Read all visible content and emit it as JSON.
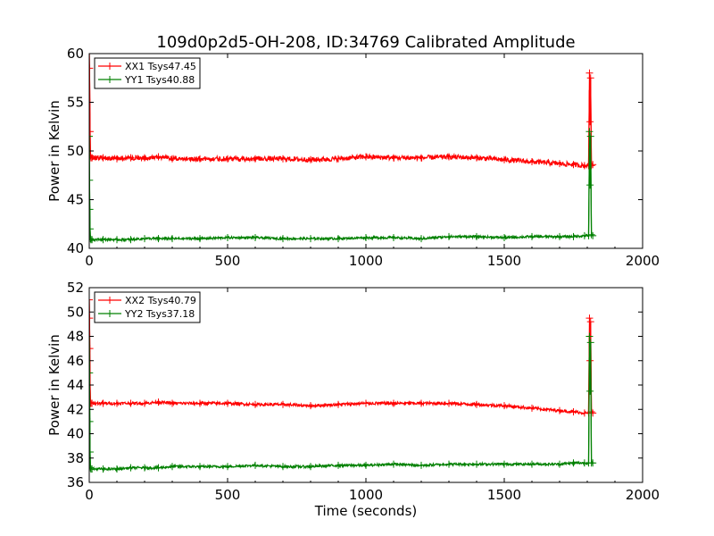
{
  "figure": {
    "title": "109d0p2d5-OH-208, ID:34769 Calibrated Amplitude",
    "xlabel": "Time (seconds)"
  },
  "colors": {
    "xx": "#ff0000",
    "yy": "#008000"
  },
  "chart_data": [
    {
      "type": "line",
      "ylabel": "Power in Kelvin",
      "xlim": [
        0,
        2000
      ],
      "ylim": [
        40,
        60
      ],
      "xticks": [
        0,
        500,
        1000,
        1500,
        2000
      ],
      "yticks": [
        40,
        45,
        50,
        55,
        60
      ],
      "grid": false,
      "legend_position": "top-left",
      "series": [
        {
          "name": "XX1 Tsys47.45",
          "color": "#ff0000",
          "noise": 0.25,
          "x": [
            0,
            1,
            2,
            3,
            4,
            6,
            10,
            50,
            100,
            150,
            200,
            250,
            300,
            400,
            500,
            600,
            700,
            800,
            900,
            1000,
            1100,
            1200,
            1300,
            1400,
            1500,
            1600,
            1700,
            1750,
            1790,
            1805,
            1808,
            1810,
            1812,
            1815,
            1820
          ],
          "y": [
            60,
            58.5,
            55,
            52,
            49.5,
            49.3,
            49.3,
            49.3,
            49.2,
            49.3,
            49.3,
            49.4,
            49.2,
            49.2,
            49.2,
            49.2,
            49.2,
            49.1,
            49.2,
            49.4,
            49.3,
            49.3,
            49.4,
            49.3,
            49.1,
            48.9,
            48.7,
            48.6,
            48.5,
            48.5,
            58.0,
            53.0,
            57.5,
            48.5,
            48.6
          ]
        },
        {
          "name": "YY1 Tsys40.88",
          "color": "#008000",
          "noise": 0.12,
          "x": [
            0,
            1,
            2,
            3,
            4,
            6,
            10,
            50,
            100,
            150,
            200,
            250,
            300,
            400,
            500,
            600,
            700,
            800,
            900,
            1000,
            1100,
            1200,
            1300,
            1400,
            1500,
            1600,
            1700,
            1750,
            1790,
            1805,
            1808,
            1810,
            1812,
            1815,
            1820
          ],
          "y": [
            51.5,
            47,
            44,
            42,
            41,
            40.9,
            40.9,
            40.9,
            40.9,
            40.9,
            41.0,
            41.0,
            41.0,
            41.0,
            41.1,
            41.1,
            41.0,
            41.0,
            41.0,
            41.1,
            41.1,
            41.0,
            41.2,
            41.2,
            41.1,
            41.2,
            41.2,
            41.2,
            41.3,
            41.3,
            52.0,
            46.5,
            51.5,
            41.4,
            41.3
          ]
        }
      ]
    },
    {
      "type": "line",
      "ylabel": "Power in Kelvin",
      "xlim": [
        0,
        2000
      ],
      "ylim": [
        36,
        52
      ],
      "xticks": [
        0,
        500,
        1000,
        1500,
        2000
      ],
      "yticks": [
        36,
        38,
        40,
        42,
        44,
        46,
        48,
        50,
        52
      ],
      "grid": false,
      "legend_position": "top-left",
      "series": [
        {
          "name": "XX2 Tsys40.79",
          "color": "#ff0000",
          "noise": 0.12,
          "x": [
            0,
            1,
            2,
            3,
            4,
            6,
            10,
            50,
            100,
            150,
            200,
            250,
            300,
            400,
            500,
            600,
            700,
            800,
            900,
            1000,
            1100,
            1200,
            1300,
            1400,
            1500,
            1600,
            1700,
            1750,
            1790,
            1805,
            1808,
            1810,
            1812,
            1815,
            1820
          ],
          "y": [
            51,
            49.5,
            47,
            44,
            42.5,
            42.5,
            42.5,
            42.5,
            42.5,
            42.5,
            42.5,
            42.6,
            42.5,
            42.5,
            42.5,
            42.4,
            42.4,
            42.3,
            42.4,
            42.5,
            42.5,
            42.5,
            42.5,
            42.4,
            42.3,
            42.1,
            41.9,
            41.8,
            41.7,
            41.7,
            49.5,
            46.0,
            49.2,
            41.8,
            41.7
          ]
        },
        {
          "name": "YY2 Tsys37.18",
          "color": "#008000",
          "noise": 0.1,
          "x": [
            0,
            1,
            2,
            3,
            4,
            6,
            10,
            50,
            100,
            150,
            200,
            250,
            300,
            400,
            500,
            600,
            700,
            800,
            900,
            1000,
            1100,
            1200,
            1300,
            1400,
            1500,
            1600,
            1700,
            1750,
            1790,
            1805,
            1808,
            1810,
            1812,
            1815,
            1820
          ],
          "y": [
            48,
            45,
            41,
            38.5,
            37.2,
            37.1,
            37.1,
            37.1,
            37.1,
            37.2,
            37.2,
            37.2,
            37.3,
            37.3,
            37.3,
            37.4,
            37.3,
            37.3,
            37.4,
            37.4,
            37.5,
            37.4,
            37.5,
            37.5,
            37.5,
            37.5,
            37.5,
            37.6,
            37.6,
            37.6,
            48.0,
            43.5,
            47.5,
            37.6,
            37.6
          ]
        }
      ]
    }
  ]
}
